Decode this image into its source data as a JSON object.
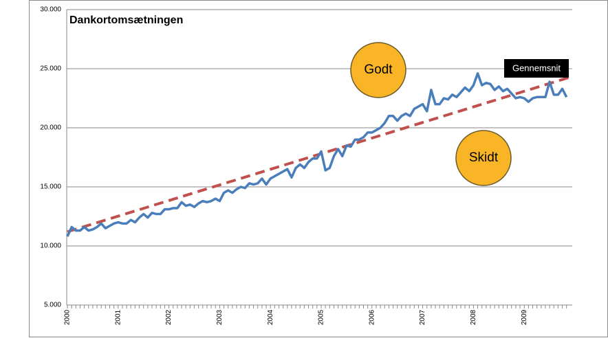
{
  "chart_data": {
    "type": "line",
    "title": "Dankortomsætningen",
    "categories": [
      "2000",
      null,
      null,
      null,
      null,
      null,
      null,
      null,
      null,
      null,
      null,
      null,
      "2001",
      null,
      null,
      null,
      null,
      null,
      null,
      null,
      null,
      null,
      null,
      null,
      "2002",
      null,
      null,
      null,
      null,
      null,
      null,
      null,
      null,
      null,
      null,
      null,
      "2003",
      null,
      null,
      null,
      null,
      null,
      null,
      null,
      null,
      null,
      null,
      null,
      "2004",
      null,
      null,
      null,
      null,
      null,
      null,
      null,
      null,
      null,
      null,
      null,
      "2005",
      null,
      null,
      null,
      null,
      null,
      null,
      null,
      null,
      null,
      null,
      null,
      "2006",
      null,
      null,
      null,
      null,
      null,
      null,
      null,
      null,
      null,
      null,
      null,
      "2007",
      null,
      null,
      null,
      null,
      null,
      null,
      null,
      null,
      null,
      null,
      null,
      "2008",
      null,
      null,
      null,
      null,
      null,
      null,
      null,
      null,
      null,
      null,
      null,
      "2009",
      null,
      null,
      null,
      null,
      null,
      null,
      null,
      null,
      null,
      null
    ],
    "series": [
      {
        "color": "#4a7ebb",
        "values": [
          10800,
          11600,
          11300,
          11300,
          11600,
          11300,
          11400,
          11600,
          11900,
          11500,
          11700,
          11900,
          12000,
          11900,
          11900,
          12200,
          12000,
          12400,
          12700,
          12400,
          12800,
          12700,
          12700,
          13100,
          13100,
          13200,
          13200,
          13700,
          13400,
          13500,
          13300,
          13600,
          13800,
          13700,
          13800,
          14000,
          13800,
          14500,
          14700,
          14500,
          14800,
          15000,
          14900,
          15300,
          15200,
          15300,
          15700,
          15200,
          15700,
          15900,
          16100,
          16300,
          16500,
          15800,
          16600,
          16900,
          16600,
          17100,
          17400,
          17400,
          18000,
          16400,
          16600,
          17600,
          18200,
          17600,
          18500,
          18400,
          19000,
          19000,
          19200,
          19600,
          19600,
          19800,
          20000,
          20400,
          21000,
          21000,
          20600,
          21000,
          21200,
          21000,
          21600,
          21800,
          22000,
          21400,
          23200,
          22000,
          22000,
          22500,
          22400,
          22800,
          22600,
          23000,
          23400,
          23100,
          23600,
          24600,
          23600,
          23800,
          23700,
          23200,
          23500,
          23100,
          23300,
          22900,
          22500,
          22600,
          22500,
          22200,
          22500,
          22600,
          22600,
          22600,
          23900,
          22800,
          22800,
          23300,
          22600
        ]
      }
    ],
    "trendline": {
      "label": "Gennemsnit",
      "color": "#c0504d",
      "values": [
        11200,
        24300
      ]
    },
    "annotations": [
      {
        "text": "Godt",
        "color": "#f9b526"
      },
      {
        "text": "Skidt",
        "color": "#f9b526"
      }
    ],
    "ylim": [
      5000,
      30000
    ],
    "yticks": [
      {
        "value": 5000,
        "label": "5.000"
      },
      {
        "value": 10000,
        "label": "10.000"
      },
      {
        "value": 15000,
        "label": "15.000"
      },
      {
        "value": 20000,
        "label": "20.000"
      },
      {
        "value": 25000,
        "label": "25.000"
      },
      {
        "value": 30000,
        "label": "30.000"
      }
    ],
    "grid": true
  }
}
